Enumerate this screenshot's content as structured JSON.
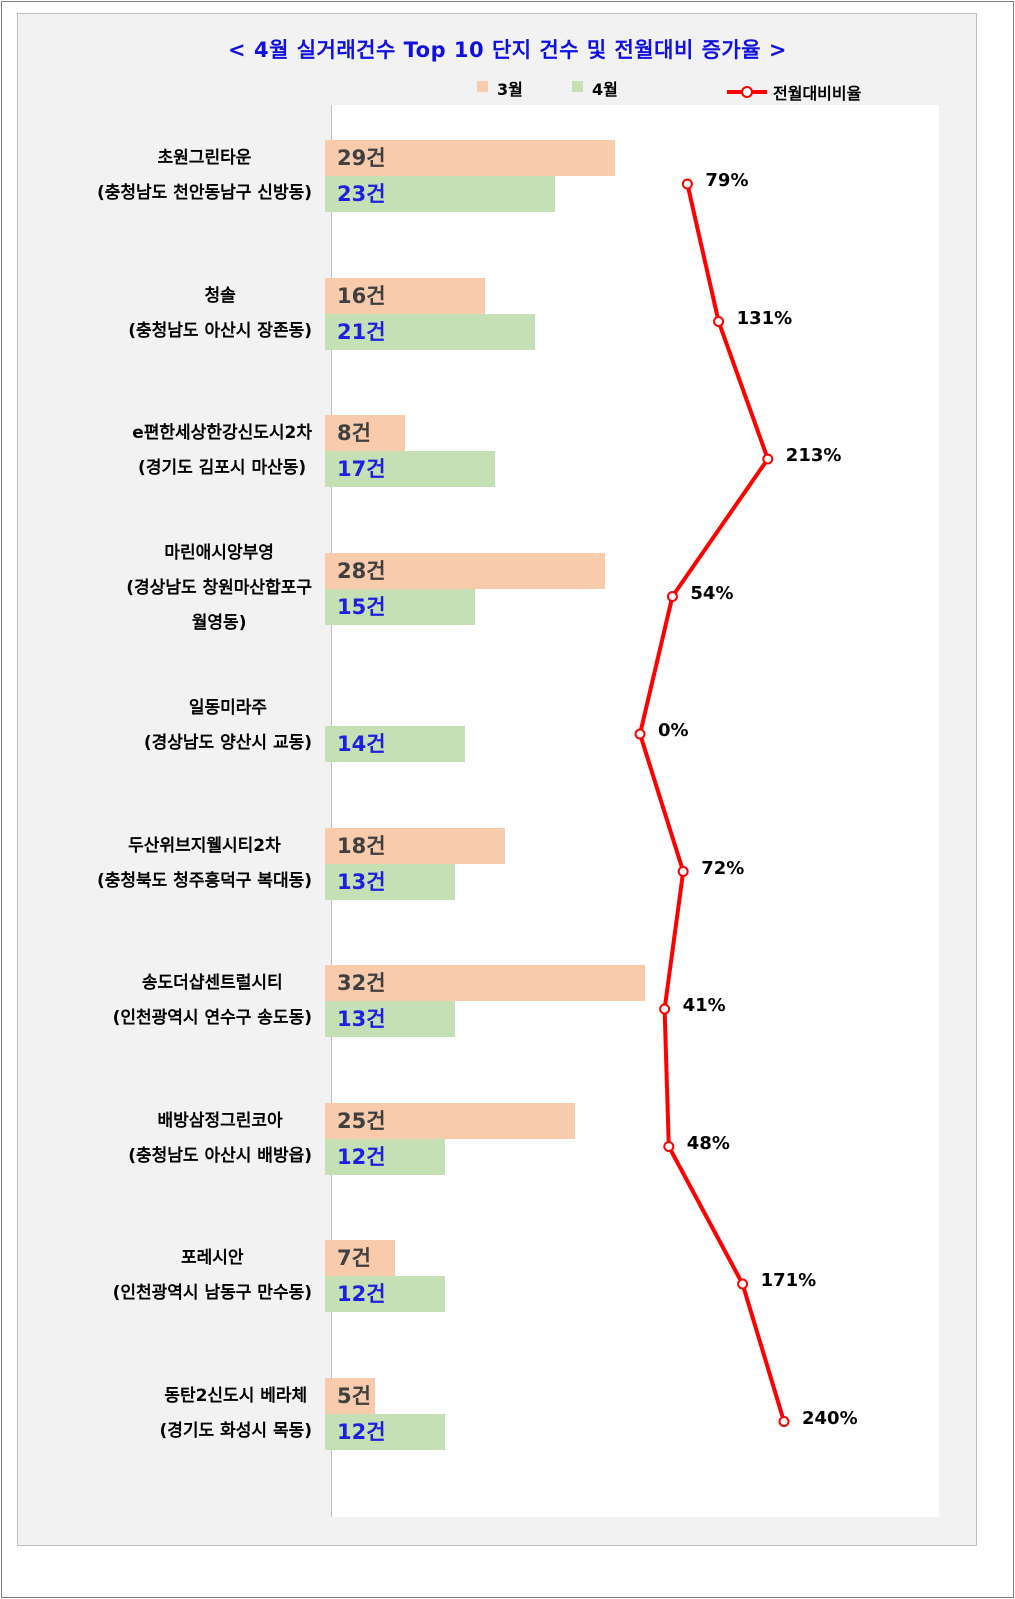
{
  "chart_data": {
    "type": "bar",
    "title": "< 4월 실거래건수 Top 10 단지 건수 및 전월대비 증가율 >",
    "legend": [
      "3월",
      "4월",
      "전월대비비율"
    ],
    "legend_placement": "top",
    "categories": [
      [
        "초원그린타운",
        "(충청남도 천안동남구 신방동)"
      ],
      [
        "청솔",
        "(충청남도 아산시 장존동)"
      ],
      [
        "e편한세상한강신도시2차",
        "(경기도 김포시 마산동)"
      ],
      [
        "마린애시앙부영",
        "(경상남도 창원마산합포구",
        "월영동)"
      ],
      [
        "일동미라주",
        "(경상남도 양산시 교동)"
      ],
      [
        "두산위브지웰시티2차",
        "(충청북도 청주흥덕구 복대동)"
      ],
      [
        "송도더샵센트럴시티",
        "(인천광역시 연수구 송도동)"
      ],
      [
        "배방삼정그린코아",
        "(충청남도 아산시 배방읍)"
      ],
      [
        "포레시안",
        "(인천광역시 남동구 만수동)"
      ],
      [
        "동탄2신도시 베라체",
        "(경기도 화성시 목동)"
      ]
    ],
    "series": [
      {
        "name": "3월",
        "color": "#f8cbad",
        "values": [
          29,
          16,
          8,
          28,
          0,
          18,
          32,
          25,
          7,
          5
        ],
        "labels": [
          "29건",
          "16건",
          "8건",
          "28건",
          "",
          "18건",
          "32건",
          "25건",
          "7건",
          "5건"
        ]
      },
      {
        "name": "4월",
        "color": "#c5e0b4",
        "values": [
          23,
          21,
          17,
          15,
          14,
          13,
          13,
          12,
          12,
          12
        ],
        "labels": [
          "23건",
          "21건",
          "17건",
          "15건",
          "14건",
          "13건",
          "13건",
          "12건",
          "12건",
          "12건"
        ]
      },
      {
        "name": "전월대비비율",
        "type": "line",
        "color": "#ff0000",
        "values": [
          79,
          131,
          213,
          54,
          0,
          72,
          41,
          48,
          171,
          240
        ],
        "labels": [
          "79%",
          "131%",
          "213%",
          "54%",
          "0%",
          "72%",
          "41%",
          "48%",
          "171%",
          "240%"
        ]
      }
    ],
    "bar_axis_range": [
      0,
      60
    ],
    "line_axis_range": [
      -100,
      400
    ],
    "grid": false
  }
}
